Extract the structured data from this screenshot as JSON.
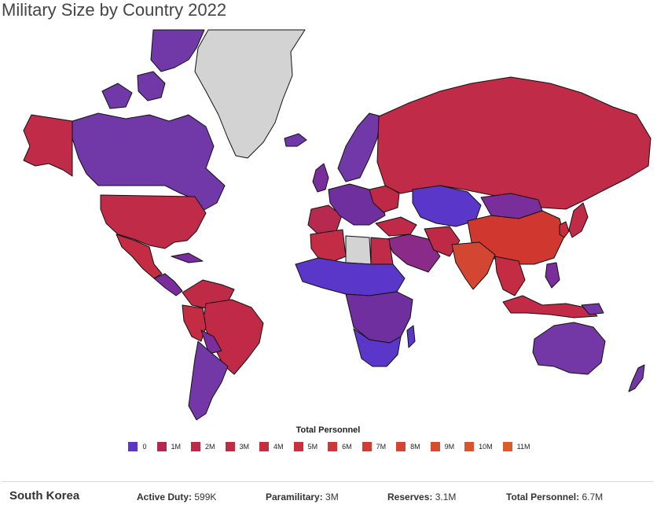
{
  "title": "Military Size by Country 2022",
  "colors": {
    "ocean": "#ffffff",
    "no_data": "#d3d3d3",
    "low": "#6a3db8",
    "mid": "#7b2f9e",
    "high": "#c42b45",
    "top": "#d8542e"
  },
  "legend": {
    "title": "Total Personnel",
    "items": [
      {
        "label": "0",
        "color": "#5b37c9"
      },
      {
        "label": "1M",
        "color": "#b42850"
      },
      {
        "label": "2M",
        "color": "#be2a46"
      },
      {
        "label": "3M",
        "color": "#c22b43"
      },
      {
        "label": "4M",
        "color": "#c62d40"
      },
      {
        "label": "5M",
        "color": "#ca303c"
      },
      {
        "label": "6M",
        "color": "#ce3638"
      },
      {
        "label": "7M",
        "color": "#d23c34"
      },
      {
        "label": "8M",
        "color": "#d54431"
      },
      {
        "label": "9M",
        "color": "#d84b2e"
      },
      {
        "label": "10M",
        "color": "#dc522b"
      },
      {
        "label": "11M",
        "color": "#e05a28"
      }
    ]
  },
  "info": {
    "country": "South Korea",
    "active_label": "Active Duty:",
    "active_value": "599K",
    "para_label": "Paramilitary:",
    "para_value": "3M",
    "reserves_label": "Reserves:",
    "reserves_value": "3.1M",
    "total_label": "Total Personnel:",
    "total_value": "6.7M"
  }
}
